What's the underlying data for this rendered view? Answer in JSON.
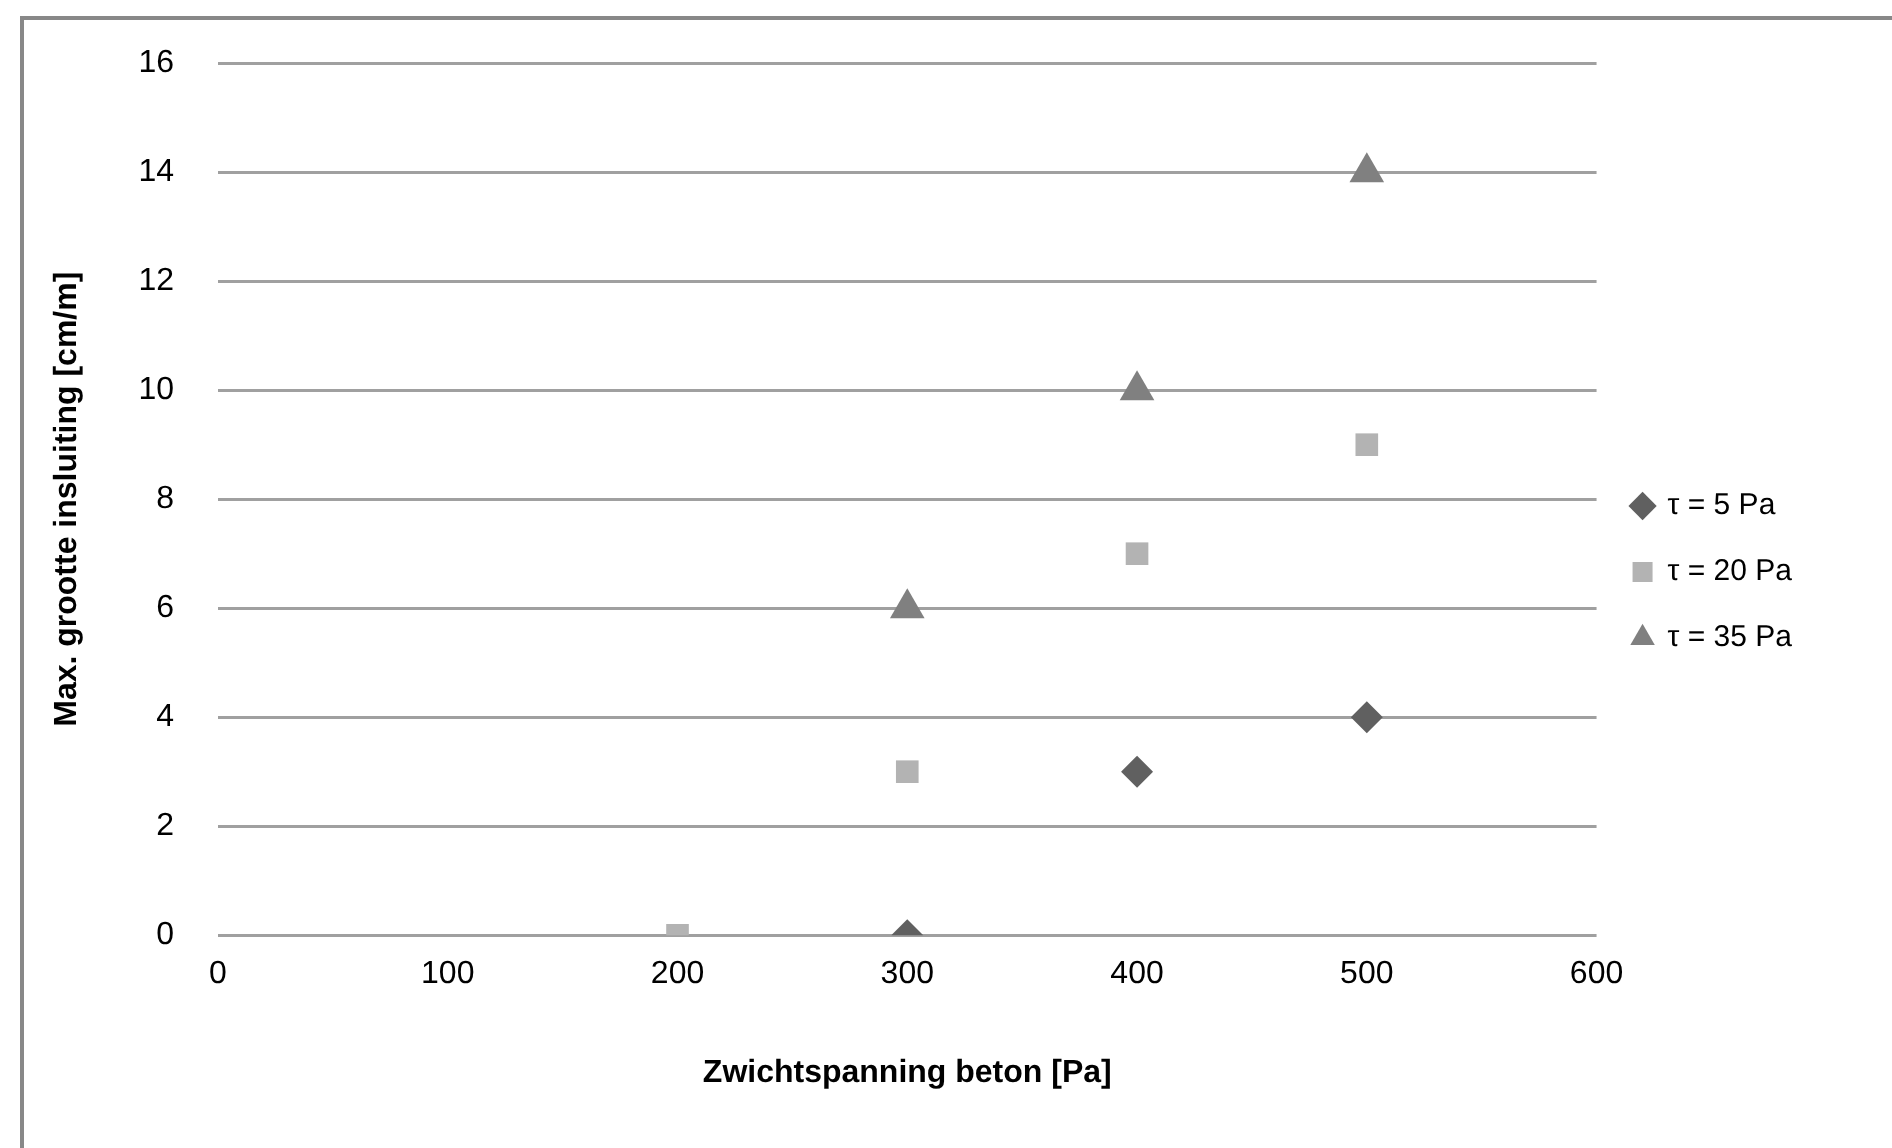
{
  "chart_data": {
    "type": "scatter",
    "xlabel": "Zwichtspanning beton [Pa]",
    "ylabel": "Max. grootte insluiting [cm/m]",
    "xlim": [
      0,
      600
    ],
    "xticks": [
      0,
      100,
      200,
      300,
      400,
      500,
      600
    ],
    "ylim": [
      0,
      16
    ],
    "yticks": [
      0,
      2,
      4,
      6,
      8,
      10,
      12,
      14,
      16
    ],
    "grid": "y",
    "legend": "right",
    "series": [
      {
        "name": "τ = 5 Pa",
        "color": "#606060",
        "marker": "diamond",
        "x": [
          300,
          400,
          500
        ],
        "values": [
          0,
          3,
          4
        ]
      },
      {
        "name": "τ = 20 Pa",
        "color": "#b3b3b3",
        "marker": "square",
        "x": [
          200,
          300,
          400,
          500
        ],
        "values": [
          0,
          3,
          7,
          9
        ]
      },
      {
        "name": "τ = 35 Pa",
        "color": "#808080",
        "marker": "triangle",
        "x": [
          300,
          400,
          500
        ],
        "values": [
          6,
          10,
          14
        ]
      }
    ]
  }
}
